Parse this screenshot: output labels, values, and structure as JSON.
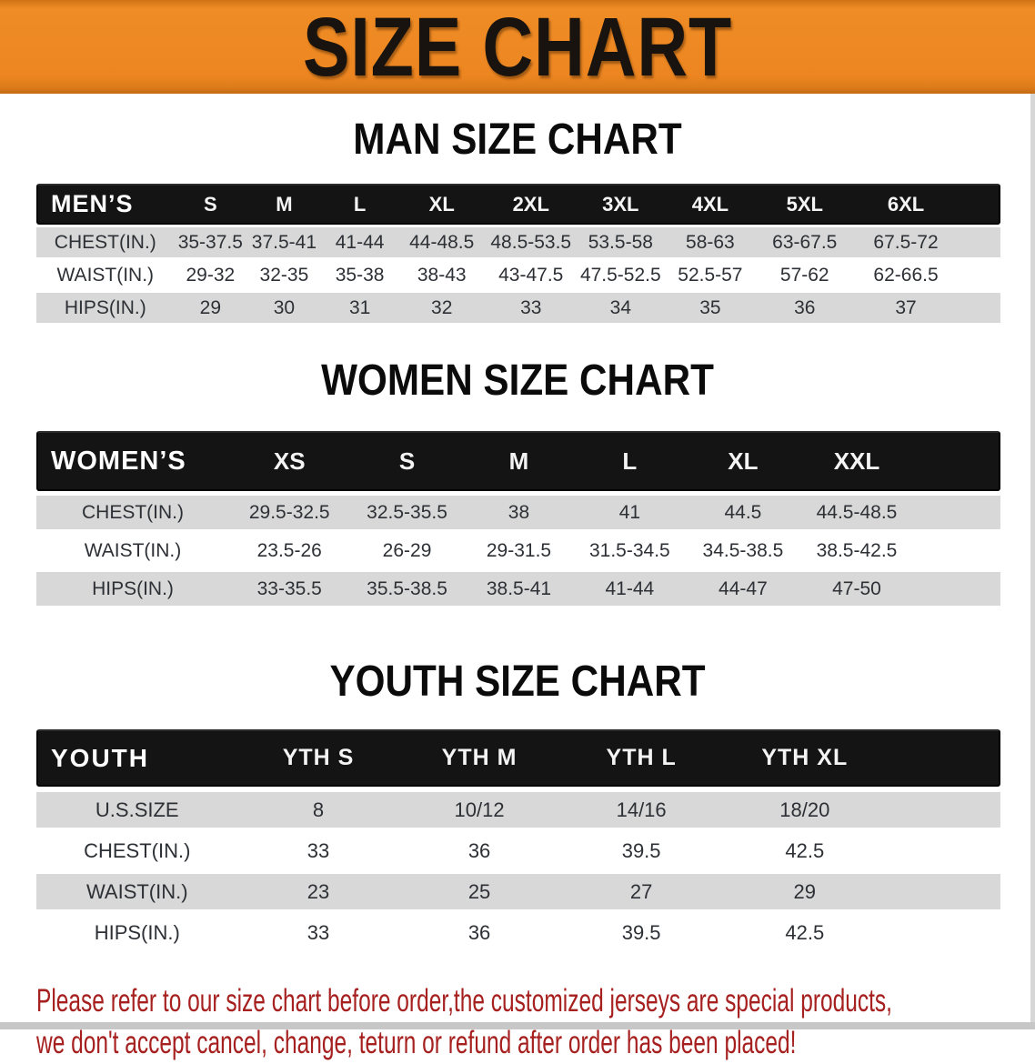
{
  "banner": {
    "title": "SIZE CHART",
    "bg_color": "#ed8621",
    "text_color": "#18130e"
  },
  "sections": [
    {
      "heading": "MAN SIZE CHART",
      "corner_label": "MEN’S",
      "columns": [
        "S",
        "M",
        "L",
        "XL",
        "2XL",
        "3XL",
        "4XL",
        "5XL",
        "6XL"
      ],
      "rows": [
        {
          "label": "CHEST(IN.)",
          "values": [
            "35-37.5",
            "37.5-41",
            "41-44",
            "44-48.5",
            "48.5-53.5",
            "53.5-58",
            "58-63",
            "63-67.5",
            "67.5-72"
          ]
        },
        {
          "label": "WAIST(IN.)",
          "values": [
            "29-32",
            "32-35",
            "35-38",
            "38-43",
            "43-47.5",
            "47.5-52.5",
            "52.5-57",
            "57-62",
            "62-66.5"
          ]
        },
        {
          "label": "HIPS(IN.)",
          "values": [
            "29",
            "30",
            "31",
            "32",
            "33",
            "34",
            "35",
            "36",
            "37"
          ]
        }
      ]
    },
    {
      "heading": "WOMEN SIZE CHART",
      "corner_label": "WOMEN’S",
      "columns": [
        "XS",
        "S",
        "M",
        "L",
        "XL",
        "XXL"
      ],
      "rows": [
        {
          "label": "CHEST(IN.)",
          "values": [
            "29.5-32.5",
            "32.5-35.5",
            "38",
            "41",
            "44.5",
            "44.5-48.5"
          ]
        },
        {
          "label": "WAIST(IN.)",
          "values": [
            "23.5-26",
            "26-29",
            "29-31.5",
            "31.5-34.5",
            "34.5-38.5",
            "38.5-42.5"
          ]
        },
        {
          "label": "HIPS(IN.)",
          "values": [
            "33-35.5",
            "35.5-38.5",
            "38.5-41",
            "41-44",
            "44-47",
            "47-50"
          ]
        }
      ]
    },
    {
      "heading": "YOUTH SIZE CHART",
      "corner_label": "YOUTH",
      "columns": [
        "YTH S",
        "YTH M",
        "YTH L",
        "YTH XL"
      ],
      "rows": [
        {
          "label": "U.S.SIZE",
          "values": [
            "8",
            "10/12",
            "14/16",
            "18/20"
          ]
        },
        {
          "label": "CHEST(IN.)",
          "values": [
            "33",
            "36",
            "39.5",
            "42.5"
          ]
        },
        {
          "label": "WAIST(IN.)",
          "values": [
            "23",
            "25",
            "27",
            "29"
          ]
        },
        {
          "label": "HIPS(IN.)",
          "values": [
            "33",
            "36",
            "39.5",
            "42.5"
          ]
        }
      ]
    }
  ],
  "disclaimer": {
    "line1": "Please refer to our size chart before order,the customized jerseys are special products,",
    "line2": "we don't accept cancel, change, teturn or refund after order has been placed!",
    "color": "#a6201f"
  },
  "style_colors": {
    "header_bar": "#151414",
    "row_alt_gray": "#d8d8d8",
    "table_text": "#2d3035"
  }
}
